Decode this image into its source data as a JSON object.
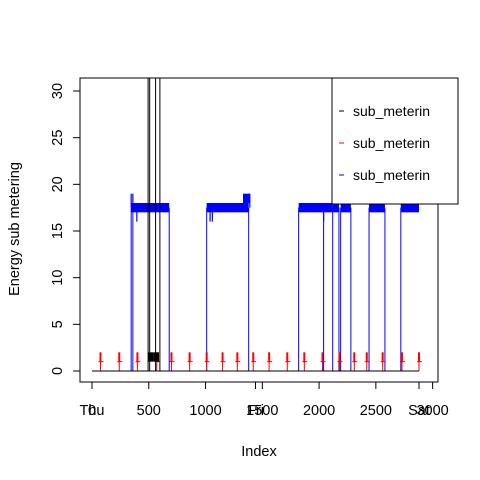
{
  "chart_data": {
    "type": "line",
    "xlabel": "Index",
    "ylabel": "Energy sub metering",
    "xlim": [
      0,
      2880
    ],
    "ylim": [
      0,
      31
    ],
    "x_ticks": [
      0,
      500,
      1000,
      1500,
      2000,
      2500,
      3000
    ],
    "x_tick_labels": [
      "0",
      "500",
      "1000",
      "1500",
      "2000",
      "2500",
      "3000"
    ],
    "x_overlay_labels": [
      {
        "label": "Thu",
        "x": 0
      },
      {
        "label": "Fri",
        "x": 1440
      },
      {
        "label": "Sat",
        "x": 2880
      }
    ],
    "y_ticks": [
      0,
      5,
      10,
      15,
      20,
      25,
      30
    ],
    "y_tick_labels": [
      "0",
      "5",
      "10",
      "15",
      "20",
      "25",
      "30"
    ],
    "legend": {
      "position": "top-right",
      "entries": [
        {
          "label": "sub_meterin",
          "color": "#000000"
        },
        {
          "label": "sub_meterin",
          "color": "#ff0000"
        },
        {
          "label": "sub_meterin",
          "color": "#0000ff"
        }
      ]
    },
    "series": [
      {
        "name": "sub_meterin",
        "color": "#000000",
        "segments": [
          {
            "x": [
              0,
              494,
              495,
              496,
              497,
              498,
              499,
              500,
              501,
              502,
              503,
              530,
              531,
              540,
              560,
              561,
              600,
              601,
              700,
              2880
            ],
            "y": [
              0,
              0,
              37,
              37,
              0,
              1,
              0,
              1,
              0,
              1,
              0,
              1,
              2,
              2,
              2,
              37,
              37,
              0,
              0,
              0
            ]
          }
        ],
        "blocks": [
          {
            "x0": 494,
            "x1": 540,
            "y0": 1,
            "y1": 2
          },
          {
            "x0": 540,
            "x1": 590,
            "y0": 1,
            "y1": 2
          }
        ]
      },
      {
        "name": "sub_meterin",
        "color": "#ff0000",
        "spike_x": [
          75,
          240,
          400,
          570,
          700,
          860,
          1010,
          1150,
          1280,
          1420,
          1560,
          1720,
          1870,
          2030,
          2180,
          2310,
          2420,
          2560,
          2730,
          2880
        ],
        "spike_y": 2,
        "base_y": 0,
        "low_y": 1
      },
      {
        "name": "sub_meterin",
        "color": "#0000ff",
        "blocks": [
          {
            "x0": 345,
            "x1": 680,
            "y0": 17,
            "y1": 18
          },
          {
            "x0": 1010,
            "x1": 1380,
            "y0": 17,
            "y1": 18
          },
          {
            "x0": 1330,
            "x1": 1390,
            "y0": 18,
            "y1": 19
          },
          {
            "x0": 1820,
            "x1": 2120,
            "y0": 17,
            "y1": 18
          },
          {
            "x0": 2120,
            "x1": 2175,
            "y0": 17,
            "y1": 18
          },
          {
            "x0": 2190,
            "x1": 2280,
            "y0": 17,
            "y1": 18
          },
          {
            "x0": 2440,
            "x1": 2580,
            "y0": 17,
            "y1": 18
          },
          {
            "x0": 2720,
            "x1": 2880,
            "y0": 17,
            "y1": 18
          }
        ],
        "spikes": [
          {
            "x": 345,
            "y": 19
          },
          {
            "x": 360,
            "y": 19
          },
          {
            "x": 395,
            "y": 16
          },
          {
            "x": 1040,
            "y": 16
          },
          {
            "x": 1060,
            "y": 16
          },
          {
            "x": 1390,
            "y": 19
          },
          {
            "x": 2040,
            "y": 16
          }
        ],
        "edges": [
          345,
          360,
          680,
          1010,
          1380,
          1820,
          2040,
          2120,
          2175,
          2190,
          2280,
          2440,
          2580,
          2720
        ]
      }
    ]
  }
}
